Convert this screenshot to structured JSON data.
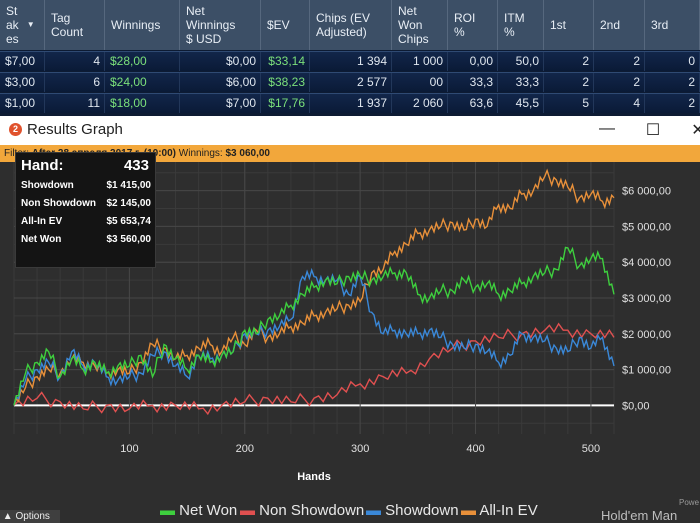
{
  "table": {
    "headers": [
      {
        "label": "St\nak\nes",
        "sort": "▼"
      },
      {
        "label": "Tag\nCount"
      },
      {
        "label": "Winnings"
      },
      {
        "label": "Net\nWinnings\n$ USD"
      },
      {
        "label": "$EV"
      },
      {
        "label": "Chips (EV\nAdjusted)"
      },
      {
        "label": "Net\nWon\nChips"
      },
      {
        "label": "ROI\n%"
      },
      {
        "label": "ITM\n%"
      },
      {
        "label": "1st"
      },
      {
        "label": "2nd"
      },
      {
        "label": "3rd"
      }
    ],
    "rows": [
      [
        "$7,00",
        "4",
        "$28,00",
        "$0,00",
        "$33,14",
        "1 394",
        "1 000",
        "0,00",
        "50,0",
        "2",
        "2",
        "0"
      ],
      [
        "$3,00",
        "6",
        "$24,00",
        "$6,00",
        "$38,23",
        "2 577",
        "00",
        "33,3",
        "33,3",
        "2",
        "2",
        "2"
      ],
      [
        "$1,00",
        "11",
        "$18,00",
        "$7,00",
        "$17,76",
        "1 937",
        "2 060",
        "63,6",
        "45,5",
        "5",
        "4",
        "2"
      ]
    ]
  },
  "window": {
    "title": "Results Graph",
    "icon": "2",
    "minimize": "—",
    "maximize": "☐",
    "close": "✕"
  },
  "filter": {
    "prefix": "Filter:",
    "text": "After 28 апреля 2017 г. (10:00)",
    "winnings_label": "Winnings:",
    "winnings_value": "$3 060,00"
  },
  "infobox": {
    "hand_label": "Hand:",
    "hand_value": "433",
    "rows": [
      {
        "label": "Showdown",
        "value": "$1 415,00"
      },
      {
        "label": "Non Showdown",
        "value": "$2 145,00"
      },
      {
        "label": "All-In EV",
        "value": "$5 653,74"
      },
      {
        "label": "Net Won",
        "value": "$3 560,00"
      }
    ]
  },
  "chart_data": {
    "type": "line",
    "xlabel": "Hands",
    "ylabel": "",
    "xlim": [
      0,
      520
    ],
    "ylim": [
      -800,
      6800
    ],
    "xticks": [
      100,
      200,
      300,
      400,
      500
    ],
    "yticks": [
      0,
      1000,
      2000,
      3000,
      4000,
      5000,
      6000
    ],
    "ytick_labels": [
      "$0,00",
      "$1 000,00",
      "$2 000,00",
      "$3 000,00",
      "$4 000,00",
      "$5 000,00",
      "$6 000,00"
    ],
    "grid": true,
    "legend_position": "bottom",
    "series": [
      {
        "name": "Net Won",
        "color": "#3ecf3e",
        "x": [
          0,
          10,
          20,
          30,
          40,
          50,
          60,
          70,
          80,
          90,
          100,
          110,
          120,
          130,
          140,
          150,
          160,
          170,
          180,
          190,
          200,
          210,
          220,
          230,
          240,
          250,
          260,
          270,
          280,
          290,
          300,
          310,
          320,
          330,
          340,
          350,
          360,
          370,
          380,
          390,
          400,
          410,
          420,
          430,
          440,
          450,
          460,
          470,
          480,
          490,
          500,
          510,
          520
        ],
        "y": [
          0,
          900,
          1200,
          1500,
          800,
          1300,
          1000,
          1200,
          900,
          1100,
          1100,
          1400,
          800,
          1700,
          1300,
          1000,
          1400,
          1200,
          1400,
          1500,
          2100,
          2000,
          2400,
          2500,
          2800,
          3100,
          3300,
          3500,
          3400,
          3600,
          3600,
          3500,
          3600,
          3700,
          3700,
          3100,
          3000,
          3200,
          3200,
          3500,
          3300,
          3400,
          3100,
          3200,
          3400,
          3600,
          3700,
          3800,
          4400,
          3900,
          4100,
          4100,
          3100
        ]
      },
      {
        "name": "Non Showdown",
        "color": "#e05050",
        "x": [
          0,
          20,
          40,
          60,
          80,
          100,
          120,
          140,
          160,
          180,
          200,
          220,
          240,
          260,
          280,
          300,
          320,
          340,
          360,
          380,
          400,
          420,
          440,
          460,
          480,
          500,
          520
        ],
        "y": [
          0,
          200,
          100,
          -100,
          0,
          -100,
          0,
          0,
          -100,
          0,
          100,
          200,
          100,
          200,
          300,
          600,
          800,
          900,
          1300,
          1600,
          1800,
          1900,
          2000,
          2100,
          2100,
          2000,
          1900
        ]
      },
      {
        "name": "Showdown",
        "color": "#3a88d8",
        "x": [
          0,
          10,
          20,
          30,
          40,
          50,
          60,
          70,
          80,
          90,
          100,
          110,
          120,
          130,
          140,
          150,
          160,
          170,
          180,
          190,
          200,
          210,
          220,
          230,
          240,
          250,
          260,
          270,
          280,
          290,
          300,
          310,
          320,
          330,
          340,
          350,
          360,
          370,
          380,
          390,
          400,
          410,
          420,
          430,
          440,
          450,
          460,
          470,
          480,
          490,
          500,
          510,
          520
        ],
        "y": [
          0,
          700,
          1000,
          1200,
          800,
          1500,
          1100,
          1200,
          800,
          700,
          800,
          900,
          1400,
          1500,
          1100,
          800,
          1400,
          1300,
          1400,
          1500,
          2000,
          2000,
          2100,
          2200,
          2400,
          3600,
          3600,
          3500,
          3500,
          3100,
          3600,
          2600,
          2000,
          2100,
          2000,
          2000,
          2100,
          1900,
          1700,
          1600,
          1700,
          1500,
          1200,
          1400,
          2000,
          1900,
          1800,
          1600,
          1500,
          1900,
          1600,
          1900,
          1100
        ]
      },
      {
        "name": "All-In EV",
        "color": "#e8903a",
        "x": [
          0,
          10,
          20,
          30,
          40,
          50,
          60,
          70,
          80,
          90,
          100,
          110,
          120,
          130,
          140,
          150,
          160,
          170,
          180,
          190,
          200,
          210,
          220,
          230,
          240,
          250,
          260,
          270,
          280,
          290,
          300,
          310,
          320,
          330,
          340,
          350,
          360,
          370,
          380,
          390,
          400,
          410,
          420,
          430,
          440,
          450,
          460,
          470,
          480,
          490,
          500,
          510,
          520
        ],
        "y": [
          0,
          500,
          800,
          1000,
          900,
          1300,
          1200,
          1100,
          900,
          1000,
          900,
          1200,
          1700,
          1600,
          1300,
          1400,
          1600,
          1700,
          1500,
          1900,
          1700,
          2100,
          1900,
          2000,
          2200,
          2300,
          2500,
          2600,
          2700,
          2800,
          2900,
          3700,
          3800,
          4300,
          4500,
          4800,
          4900,
          5000,
          5100,
          4900,
          5200,
          5000,
          5600,
          5500,
          5900,
          6000,
          6400,
          6300,
          6100,
          5800,
          5900,
          5700,
          5800
        ]
      }
    ]
  },
  "ui": {
    "options_label": "Options",
    "brand_text": "Hold'em Man",
    "powered_text": "Powe"
  }
}
